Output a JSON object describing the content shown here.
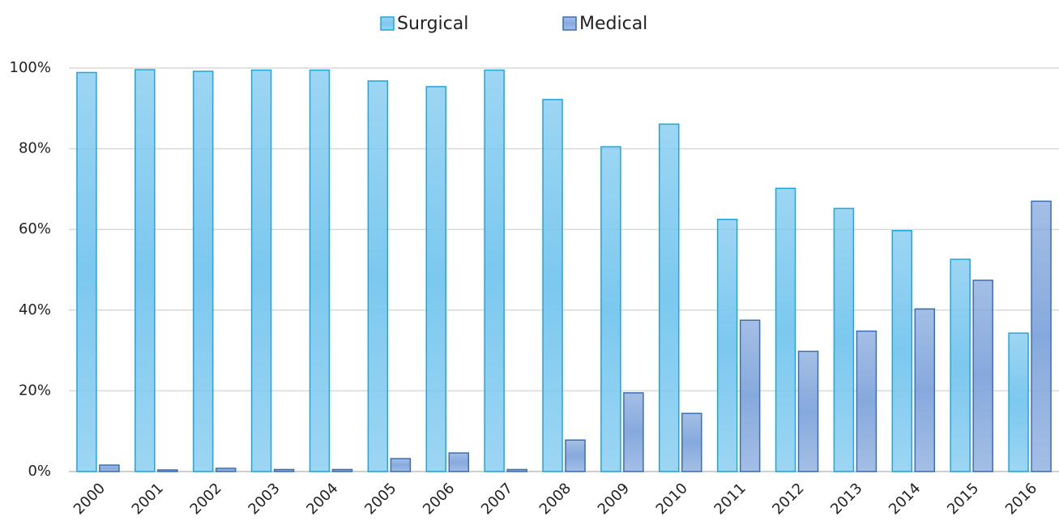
{
  "chart_data": {
    "type": "bar",
    "categories": [
      "2000",
      "2001",
      "2002",
      "2003",
      "2004",
      "2005",
      "2006",
      "2007",
      "2008",
      "2009",
      "2010",
      "2011",
      "2012",
      "2013",
      "2014",
      "2015",
      "2016"
    ],
    "series": [
      {
        "name": "Surgical",
        "color": "#7cc8ef",
        "edgecolor": "#1fa6df",
        "values": [
          98.9,
          99.6,
          99.2,
          99.5,
          99.5,
          96.8,
          95.4,
          99.5,
          92.2,
          80.5,
          86.1,
          62.5,
          70.2,
          65.2,
          59.7,
          52.6,
          34.3
        ]
      },
      {
        "name": "Medical",
        "color": "#86a9dd",
        "edgecolor": "#3a6fb5",
        "values": [
          1.6,
          0.4,
          0.8,
          0.5,
          0.5,
          3.2,
          4.6,
          0.5,
          7.8,
          19.5,
          14.4,
          37.5,
          29.8,
          34.8,
          40.3,
          47.4,
          67.0
        ]
      }
    ],
    "ylim": [
      0,
      100
    ],
    "yticks": [
      {
        "value": 0,
        "label": "0%"
      },
      {
        "value": 20,
        "label": "20%"
      },
      {
        "value": 40,
        "label": "40%"
      },
      {
        "value": 60,
        "label": "60%"
      },
      {
        "value": 80,
        "label": "80%"
      },
      {
        "value": 100,
        "label": "100%"
      }
    ],
    "grid": true,
    "legend": "top"
  }
}
